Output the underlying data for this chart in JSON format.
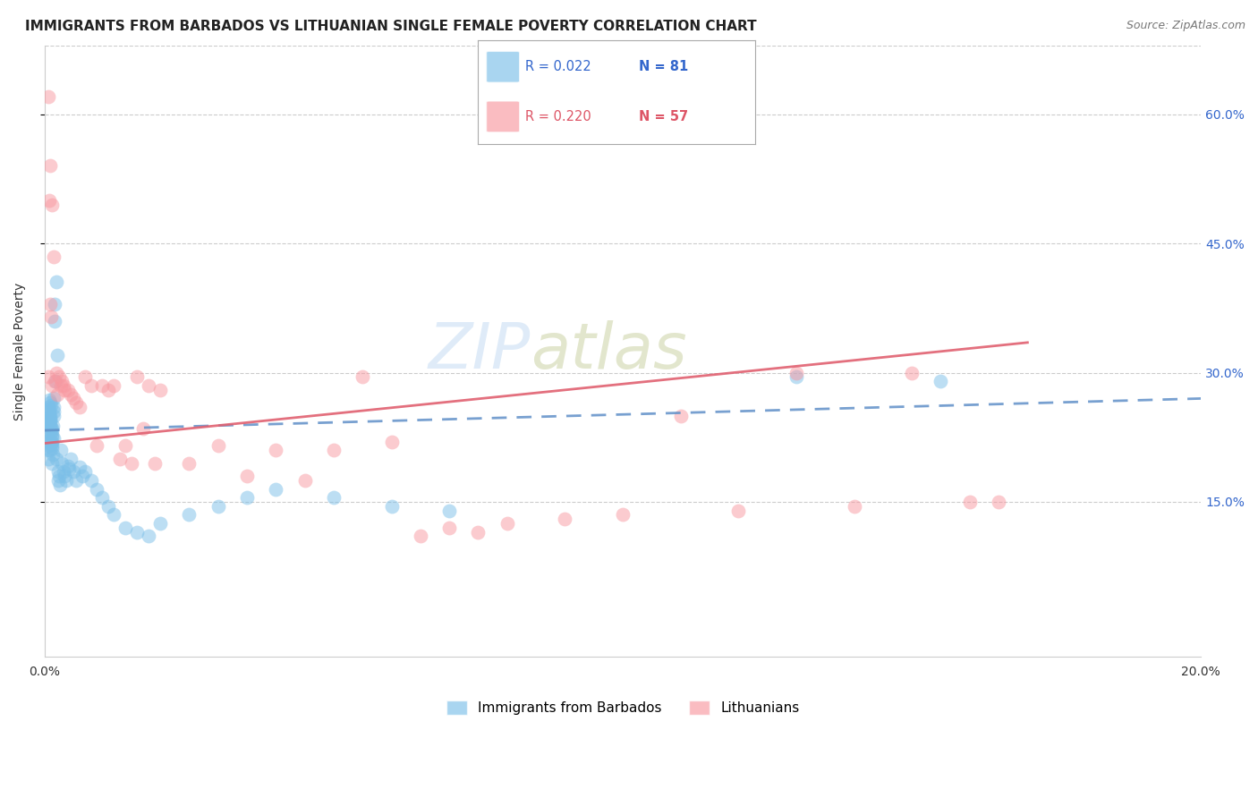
{
  "title": "IMMIGRANTS FROM BARBADOS VS LITHUANIAN SINGLE FEMALE POVERTY CORRELATION CHART",
  "source": "Source: ZipAtlas.com",
  "ylabel": "Single Female Poverty",
  "legend_label1": "Immigrants from Barbados",
  "legend_label2": "Lithuanians",
  "r1": 0.022,
  "n1": 81,
  "r2": 0.22,
  "n2": 57,
  "xlim": [
    0.0,
    0.2
  ],
  "ylim": [
    -0.03,
    0.68
  ],
  "y_ticks": [
    0.15,
    0.3,
    0.45,
    0.6
  ],
  "y_tick_labels": [
    "15.0%",
    "30.0%",
    "45.0%",
    "60.0%"
  ],
  "x_ticks": [
    0.0,
    0.05,
    0.1,
    0.15,
    0.2
  ],
  "x_tick_labels": [
    "0.0%",
    "",
    "",
    "",
    "20.0%"
  ],
  "color_blue": "#7bbfe8",
  "color_pink": "#f898a0",
  "color_blue_line": "#6090c8",
  "color_pink_line": "#e06070",
  "color_label_blue": "#3366cc",
  "color_label_pink": "#dd5566",
  "watermark_zip": "ZIP",
  "watermark_atlas": "atlas",
  "background_color": "#ffffff",
  "grid_color": "#cccccc",
  "title_fontsize": 11,
  "axis_label_fontsize": 10,
  "tick_fontsize": 10,
  "legend_fontsize": 11,
  "source_fontsize": 9,
  "blue_points_x": [
    0.0005,
    0.0008,
    0.001,
    0.0012,
    0.0015,
    0.0006,
    0.0009,
    0.0011,
    0.0013,
    0.0016,
    0.0007,
    0.001,
    0.0014,
    0.0008,
    0.0012,
    0.0006,
    0.0011,
    0.0009,
    0.0013,
    0.0007,
    0.0008,
    0.001,
    0.0015,
    0.0012,
    0.0009,
    0.0011,
    0.0006,
    0.0014,
    0.0007,
    0.0013,
    0.0016,
    0.001,
    0.0008,
    0.0012,
    0.0009,
    0.0015,
    0.0011,
    0.0007,
    0.0013,
    0.001,
    0.0018,
    0.002,
    0.0022,
    0.0019,
    0.0021,
    0.0023,
    0.0025,
    0.0024,
    0.0017,
    0.0026,
    0.003,
    0.0032,
    0.0028,
    0.0035,
    0.004,
    0.0038,
    0.0042,
    0.0045,
    0.005,
    0.0055,
    0.006,
    0.0065,
    0.007,
    0.008,
    0.009,
    0.01,
    0.011,
    0.012,
    0.014,
    0.016,
    0.018,
    0.02,
    0.025,
    0.03,
    0.035,
    0.04,
    0.05,
    0.06,
    0.07,
    0.13,
    0.155
  ],
  "blue_points_y": [
    0.23,
    0.255,
    0.24,
    0.22,
    0.26,
    0.215,
    0.245,
    0.235,
    0.225,
    0.25,
    0.21,
    0.265,
    0.238,
    0.252,
    0.228,
    0.242,
    0.218,
    0.248,
    0.232,
    0.222,
    0.268,
    0.21,
    0.255,
    0.195,
    0.238,
    0.22,
    0.26,
    0.205,
    0.245,
    0.215,
    0.27,
    0.23,
    0.258,
    0.212,
    0.246,
    0.224,
    0.262,
    0.2,
    0.235,
    0.25,
    0.38,
    0.405,
    0.32,
    0.29,
    0.2,
    0.185,
    0.18,
    0.175,
    0.36,
    0.17,
    0.195,
    0.185,
    0.21,
    0.18,
    0.192,
    0.175,
    0.188,
    0.2,
    0.185,
    0.175,
    0.19,
    0.18,
    0.185,
    0.175,
    0.165,
    0.155,
    0.145,
    0.135,
    0.12,
    0.115,
    0.11,
    0.125,
    0.135,
    0.145,
    0.155,
    0.165,
    0.155,
    0.145,
    0.14,
    0.295,
    0.29
  ],
  "pink_points_x": [
    0.0006,
    0.001,
    0.0008,
    0.0012,
    0.0015,
    0.0009,
    0.0011,
    0.0007,
    0.0013,
    0.002,
    0.0025,
    0.0018,
    0.003,
    0.0035,
    0.0022,
    0.0028,
    0.0032,
    0.004,
    0.0045,
    0.005,
    0.0055,
    0.006,
    0.007,
    0.008,
    0.009,
    0.01,
    0.011,
    0.012,
    0.013,
    0.014,
    0.015,
    0.016,
    0.017,
    0.018,
    0.019,
    0.02,
    0.025,
    0.03,
    0.035,
    0.04,
    0.045,
    0.05,
    0.06,
    0.07,
    0.08,
    0.09,
    0.1,
    0.11,
    0.12,
    0.13,
    0.14,
    0.15,
    0.16,
    0.165,
    0.055,
    0.065,
    0.075
  ],
  "pink_points_y": [
    0.62,
    0.54,
    0.5,
    0.495,
    0.435,
    0.38,
    0.365,
    0.295,
    0.285,
    0.3,
    0.295,
    0.29,
    0.29,
    0.28,
    0.275,
    0.285,
    0.285,
    0.28,
    0.275,
    0.27,
    0.265,
    0.26,
    0.295,
    0.285,
    0.215,
    0.285,
    0.28,
    0.285,
    0.2,
    0.215,
    0.195,
    0.295,
    0.235,
    0.285,
    0.195,
    0.28,
    0.195,
    0.215,
    0.18,
    0.21,
    0.175,
    0.21,
    0.22,
    0.12,
    0.125,
    0.13,
    0.135,
    0.25,
    0.14,
    0.3,
    0.145,
    0.3,
    0.15,
    0.15,
    0.295,
    0.11,
    0.115
  ]
}
